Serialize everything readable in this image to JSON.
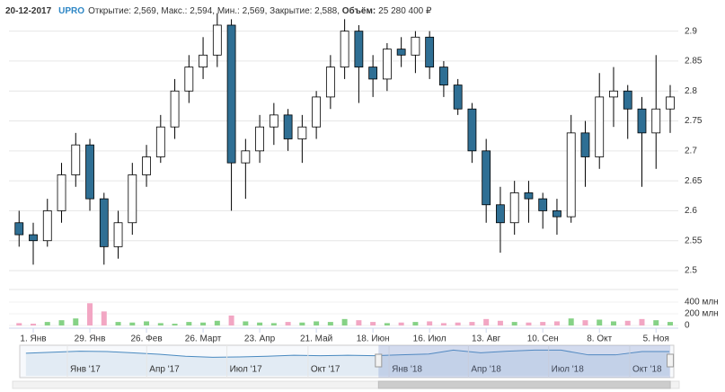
{
  "header": {
    "date": "20-12-2017",
    "ticker": "UPRO",
    "info": "Открытие: 2,569, Макс.: 2,594, Мин.: 2,569, Закрытие: 2,588, ",
    "volume_label": "Объём:",
    "volume": "25 280 400 ₽"
  },
  "chart_data": [
    {
      "type": "candlestick",
      "x": [
        "2017-12-25",
        "2018-01-01",
        "2018-01-08",
        "2018-01-15",
        "2018-01-22",
        "2018-01-29",
        "2018-02-05",
        "2018-02-12",
        "2018-02-19",
        "2018-02-26",
        "2018-03-05",
        "2018-03-12",
        "2018-03-19",
        "2018-03-26",
        "2018-04-02",
        "2018-04-09",
        "2018-04-16",
        "2018-04-23",
        "2018-04-30",
        "2018-05-07",
        "2018-05-14",
        "2018-05-21",
        "2018-05-28",
        "2018-06-04",
        "2018-06-11",
        "2018-06-18",
        "2018-06-25",
        "2018-07-02",
        "2018-07-09",
        "2018-07-16",
        "2018-07-23",
        "2018-07-30",
        "2018-08-06",
        "2018-08-13",
        "2018-08-20",
        "2018-08-27",
        "2018-09-03",
        "2018-09-10",
        "2018-09-17",
        "2018-09-24",
        "2018-10-01",
        "2018-10-08",
        "2018-10-15",
        "2018-10-22",
        "2018-10-29",
        "2018-11-05",
        "2018-11-12"
      ],
      "open": [
        2.58,
        2.56,
        2.55,
        2.6,
        2.66,
        2.71,
        2.62,
        2.54,
        2.58,
        2.66,
        2.69,
        2.74,
        2.8,
        2.84,
        2.86,
        2.91,
        2.68,
        2.7,
        2.74,
        2.76,
        2.72,
        2.74,
        2.79,
        2.84,
        2.9,
        2.84,
        2.82,
        2.87,
        2.86,
        2.89,
        2.84,
        2.81,
        2.77,
        2.7,
        2.61,
        2.58,
        2.63,
        2.62,
        2.6,
        2.59,
        2.73,
        2.69,
        2.79,
        2.8,
        2.77,
        2.73,
        2.77
      ],
      "high": [
        2.6,
        2.58,
        2.62,
        2.68,
        2.73,
        2.72,
        2.63,
        2.6,
        2.68,
        2.71,
        2.76,
        2.82,
        2.86,
        2.89,
        2.93,
        2.92,
        2.72,
        2.76,
        2.78,
        2.77,
        2.76,
        2.8,
        2.86,
        2.92,
        2.91,
        2.86,
        2.88,
        2.89,
        2.9,
        2.9,
        2.85,
        2.82,
        2.78,
        2.72,
        2.64,
        2.65,
        2.65,
        2.63,
        2.62,
        2.76,
        2.75,
        2.83,
        2.84,
        2.81,
        2.79,
        2.86,
        2.81
      ],
      "low": [
        2.54,
        2.51,
        2.54,
        2.58,
        2.64,
        2.6,
        2.51,
        2.52,
        2.56,
        2.64,
        2.68,
        2.72,
        2.78,
        2.82,
        2.84,
        2.6,
        2.62,
        2.68,
        2.71,
        2.7,
        2.68,
        2.72,
        2.77,
        2.82,
        2.78,
        2.79,
        2.8,
        2.84,
        2.83,
        2.82,
        2.79,
        2.76,
        2.68,
        2.58,
        2.53,
        2.56,
        2.58,
        2.57,
        2.56,
        2.58,
        2.64,
        2.67,
        2.74,
        2.72,
        2.64,
        2.67,
        2.73
      ],
      "close": [
        2.56,
        2.55,
        2.6,
        2.66,
        2.71,
        2.62,
        2.54,
        2.58,
        2.66,
        2.69,
        2.74,
        2.8,
        2.84,
        2.86,
        2.91,
        2.68,
        2.7,
        2.74,
        2.76,
        2.72,
        2.74,
        2.79,
        2.84,
        2.9,
        2.84,
        2.82,
        2.87,
        2.86,
        2.89,
        2.84,
        2.81,
        2.77,
        2.7,
        2.61,
        2.58,
        2.63,
        2.62,
        2.6,
        2.59,
        2.73,
        2.69,
        2.79,
        2.8,
        2.77,
        2.73,
        2.77,
        2.79
      ],
      "xlim": [
        "2017-12-20",
        "2018-11-16"
      ],
      "xticks": [
        {
          "value": "2018-01-01",
          "label": "1. Янв"
        },
        {
          "value": "2018-01-29",
          "label": "29. Янв"
        },
        {
          "value": "2018-02-26",
          "label": "26. Фев"
        },
        {
          "value": "2018-03-26",
          "label": "26. Март"
        },
        {
          "value": "2018-04-23",
          "label": "23. Апр"
        },
        {
          "value": "2018-05-21",
          "label": "21. Май"
        },
        {
          "value": "2018-06-18",
          "label": "18. Июн"
        },
        {
          "value": "2018-07-16",
          "label": "16. Июл"
        },
        {
          "value": "2018-08-13",
          "label": "13. Авг"
        },
        {
          "value": "2018-09-10",
          "label": "10. Сен"
        },
        {
          "value": "2018-10-08",
          "label": "8. Окт"
        },
        {
          "value": "2018-11-05",
          "label": "5. Ноя"
        }
      ],
      "ylim": [
        2.47,
        2.94
      ],
      "yticks": [
        2.5,
        2.55,
        2.6,
        2.65,
        2.7,
        2.75,
        2.8,
        2.85,
        2.9
      ],
      "grid": true,
      "up_color": "#ffffff",
      "down_color": "#2f6f94"
    },
    {
      "type": "bar",
      "values": [
        40,
        30,
        60,
        90,
        120,
        380,
        240,
        60,
        50,
        70,
        40,
        30,
        60,
        50,
        80,
        170,
        70,
        50,
        40,
        60,
        50,
        70,
        60,
        110,
        90,
        60,
        40,
        50,
        60,
        70,
        40,
        50,
        60,
        110,
        80,
        60,
        50,
        60,
        70,
        120,
        90,
        100,
        70,
        80,
        110,
        90,
        60
      ],
      "ylim": [
        0,
        615
      ],
      "yticks": [
        {
          "value": 0,
          "label": "0"
        },
        {
          "value": 200,
          "label": "200 млн"
        },
        {
          "value": 400,
          "label": "400 млн"
        }
      ],
      "up_color": "#86d286",
      "down_color": "#f2a6c3"
    },
    {
      "type": "area",
      "x": [
        "2016-11-15",
        "2016-12-15",
        "2017-01-15",
        "2017-02-15",
        "2017-03-15",
        "2017-04-15",
        "2017-05-15",
        "2017-06-15",
        "2017-07-15",
        "2017-08-15",
        "2017-09-15",
        "2017-10-15",
        "2017-11-15",
        "2017-12-15",
        "2018-01-15",
        "2018-02-15",
        "2018-03-15",
        "2018-04-15",
        "2018-05-15",
        "2018-06-15",
        "2018-07-15",
        "2018-08-15",
        "2018-09-15",
        "2018-10-15",
        "2018-11-15"
      ],
      "values": [
        2.7,
        2.75,
        2.8,
        2.78,
        2.72,
        2.65,
        2.55,
        2.5,
        2.52,
        2.55,
        2.6,
        2.58,
        2.6,
        2.58,
        2.62,
        2.66,
        2.85,
        2.72,
        2.8,
        2.85,
        2.85,
        2.62,
        2.62,
        2.78,
        2.78
      ],
      "xlim": [
        "2016-11-08",
        "2018-11-20"
      ],
      "xticks": [
        {
          "value": "2017-01-01",
          "label": "Янв '17"
        },
        {
          "value": "2017-04-01",
          "label": "Апр '17"
        },
        {
          "value": "2017-07-01",
          "label": "Июл '17"
        },
        {
          "value": "2017-10-01",
          "label": "Окт '17"
        },
        {
          "value": "2018-01-01",
          "label": "Янв '18"
        },
        {
          "value": "2018-04-01",
          "label": "Апр '18"
        },
        {
          "value": "2018-07-01",
          "label": "Июл '18"
        },
        {
          "value": "2018-10-01",
          "label": "Окт '18"
        }
      ],
      "ylim": [
        1.6,
        3.0
      ],
      "color": "#4a8ac0"
    }
  ]
}
